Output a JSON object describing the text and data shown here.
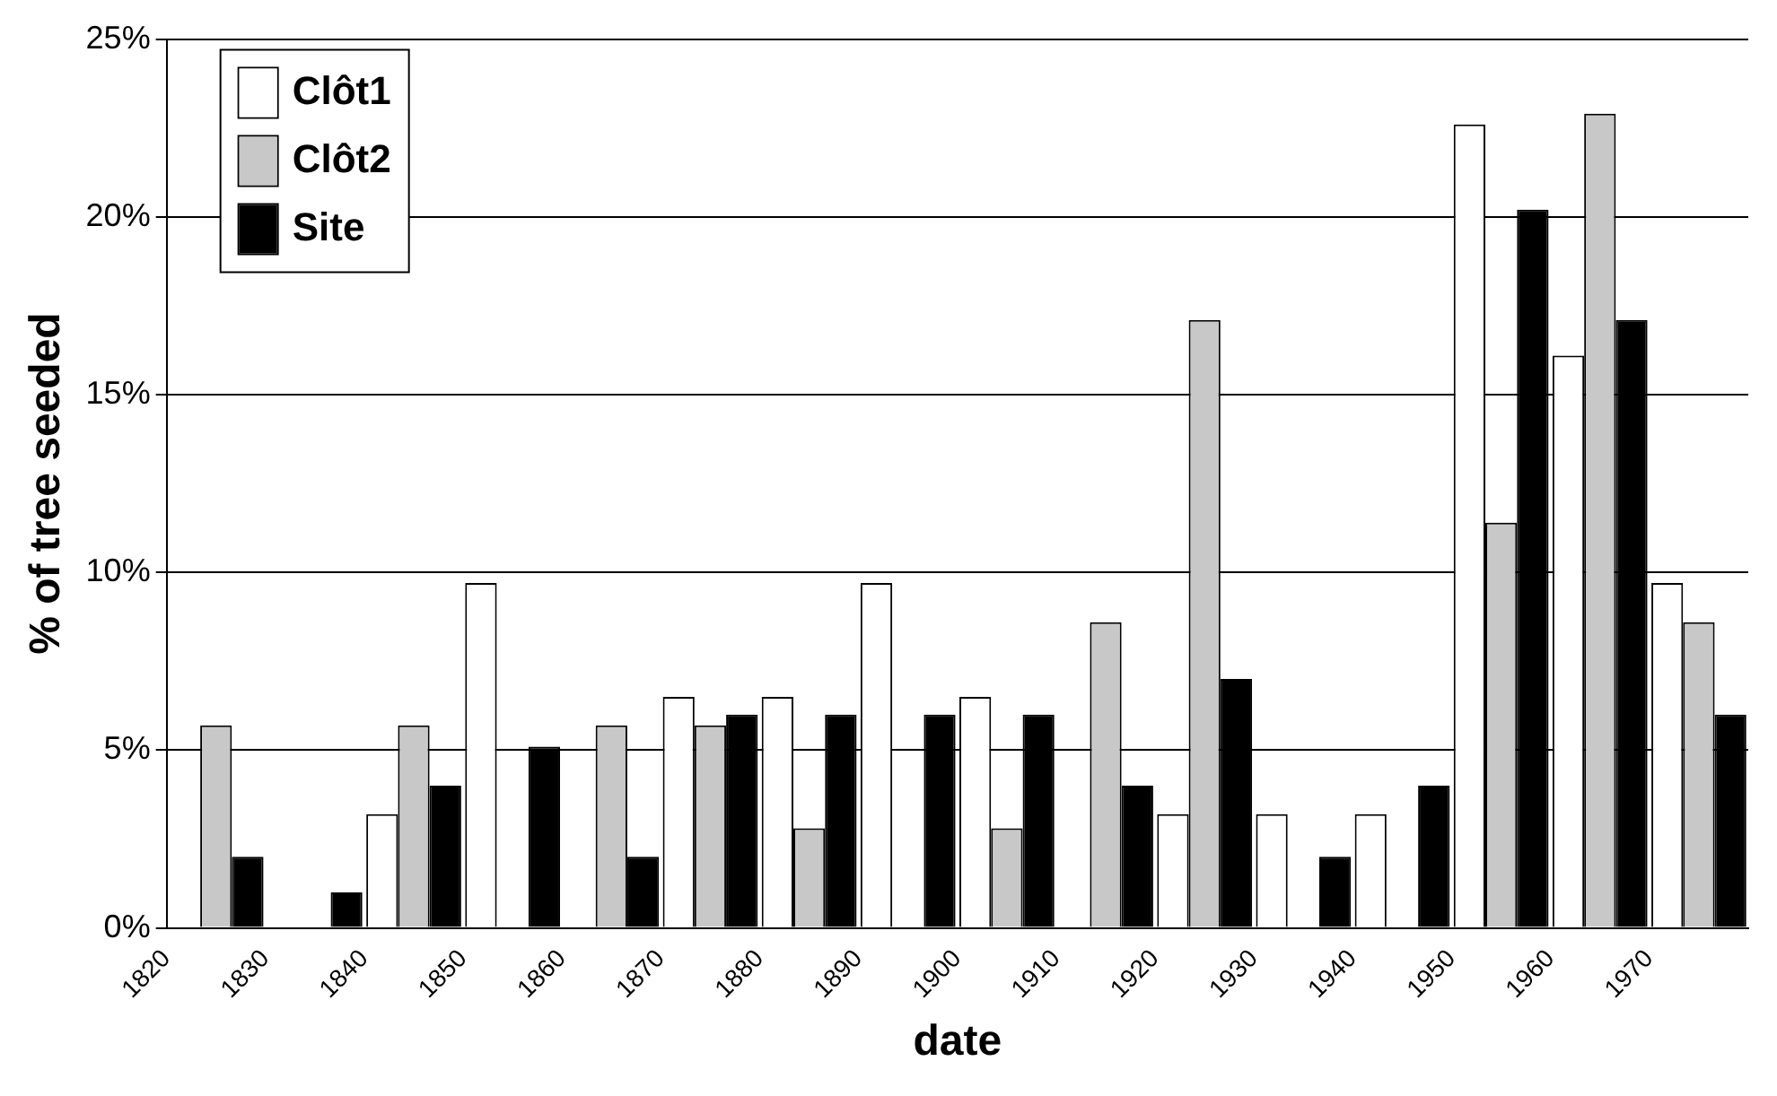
{
  "chart_data": {
    "type": "bar",
    "xlabel": "date",
    "ylabel": "% of tree seeded",
    "x": [
      1825,
      1835,
      1845,
      1855,
      1865,
      1875,
      1885,
      1895,
      1905,
      1915,
      1925,
      1935,
      1945,
      1955,
      1965,
      1975
    ],
    "series": [
      {
        "name": "Clôt1",
        "color": "#ffffff",
        "values": [
          0,
          0,
          3.2,
          9.7,
          0,
          6.5,
          6.5,
          9.7,
          6.5,
          0,
          3.2,
          3.2,
          3.2,
          22.6,
          16.1,
          9.7
        ]
      },
      {
        "name": "Clôt2",
        "color": "#c8c8c8",
        "values": [
          5.7,
          0,
          5.7,
          0,
          5.7,
          5.7,
          2.8,
          0,
          2.8,
          8.6,
          17.1,
          0,
          0,
          11.4,
          22.9,
          8.6
        ]
      },
      {
        "name": "Site",
        "color": "#000000",
        "values": [
          2.0,
          1.0,
          4.0,
          5.1,
          2.0,
          6.0,
          6.0,
          6.0,
          6.0,
          4.0,
          7.0,
          2.0,
          4.0,
          20.2,
          17.1,
          6.0
        ]
      }
    ],
    "xlim": [
      1820,
      1980
    ],
    "xticks": [
      1820,
      1830,
      1840,
      1850,
      1860,
      1870,
      1880,
      1890,
      1900,
      1910,
      1920,
      1930,
      1940,
      1950,
      1960,
      1970
    ],
    "ylim": [
      0,
      25
    ],
    "yticks": [
      {
        "value": 0,
        "label": "0%"
      },
      {
        "value": 5,
        "label": "5%"
      },
      {
        "value": 10,
        "label": "10%"
      },
      {
        "value": 15,
        "label": "15%"
      },
      {
        "value": 20,
        "label": "20%"
      },
      {
        "value": 25,
        "label": "25%"
      }
    ],
    "grid": "y",
    "legend": "top left"
  }
}
